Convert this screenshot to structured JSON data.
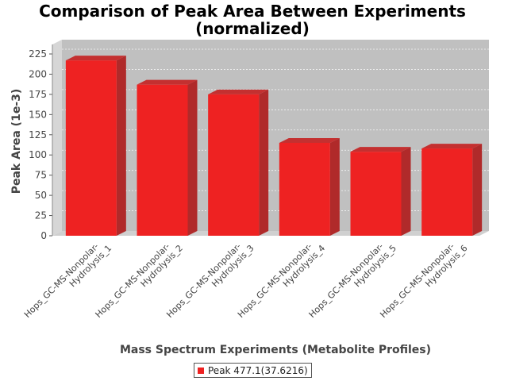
{
  "chart_data": {
    "type": "bar",
    "title": "Comparison of Peak Area Between Experiments",
    "subtitle": "(normalized)",
    "xlabel": "Mass Spectrum Experiments (Metabolite Profiles)",
    "ylabel": "Peak Area (1e-3)",
    "categories": [
      [
        "Hops_GC-MS-Nonpolar-",
        "Hydrolysis_1"
      ],
      [
        "Hops_GC-MS-Nonpolar-",
        "Hydrolysis_2"
      ],
      [
        "Hops_GC-MS-Nonpolar-",
        "Hydrolysis_3"
      ],
      [
        "Hops_GC-MS-Nonpolar-",
        "Hydrolysis_4"
      ],
      [
        "Hops_GC-MS-Nonpolar-",
        "Hydrolysis_5"
      ],
      [
        "Hops_GC-MS-Nonpolar-",
        "Hydrolysis_6"
      ]
    ],
    "series": [
      {
        "name": "Peak 477.1(37.6216)",
        "values": [
          217,
          187,
          175,
          115,
          104,
          108
        ],
        "color": "#ee2222"
      }
    ],
    "ylim": [
      0,
      225
    ],
    "yticks": [
      0,
      25,
      50,
      75,
      100,
      125,
      150,
      175,
      200,
      225
    ],
    "grid": true,
    "legend_position": "bottom-center",
    "plot_background": "#c0c0c0"
  }
}
